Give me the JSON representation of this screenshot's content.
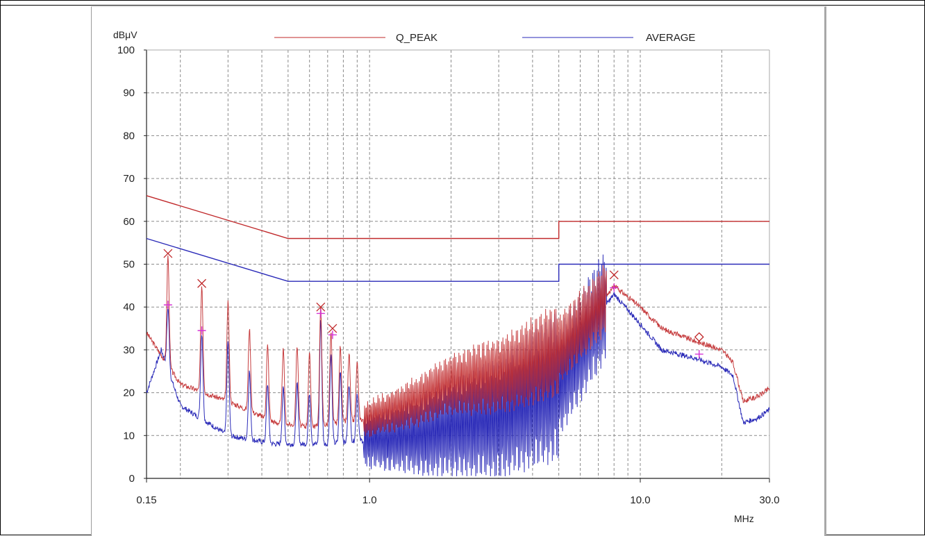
{
  "colors": {
    "q_peak": "#c0282a",
    "average": "#2a2ab8",
    "marker": "#d633d6",
    "grid": "#8a8a8a"
  },
  "chart_data": {
    "type": "line",
    "x_scale": "log",
    "xlim": [
      0.15,
      30.0
    ],
    "ylim": [
      0,
      100
    ],
    "y_unit_label": "dBμV",
    "x_unit_label": "MHz",
    "y_ticks": [
      "0",
      "10",
      "20",
      "30",
      "40",
      "50",
      "60",
      "70",
      "80",
      "90",
      "100"
    ],
    "x_tick_labels": [
      {
        "x": 0.15,
        "label": "0.15"
      },
      {
        "x": 1.0,
        "label": "1.0"
      },
      {
        "x": 10.0,
        "label": "10.0"
      },
      {
        "x": 30.0,
        "label": "30.0"
      }
    ],
    "grid": true,
    "legend": [
      {
        "name": "Q_PEAK",
        "color": "#c0282a"
      },
      {
        "name": "AVERAGE",
        "color": "#2a2ab8"
      }
    ],
    "limit_lines": [
      {
        "series": "Q_PEAK",
        "points": [
          [
            0.15,
            66
          ],
          [
            0.5,
            56
          ],
          [
            5.0,
            56
          ],
          [
            5.0,
            60
          ],
          [
            30.0,
            60
          ]
        ]
      },
      {
        "series": "AVERAGE",
        "points": [
          [
            0.15,
            56
          ],
          [
            0.5,
            46
          ],
          [
            5.0,
            46
          ],
          [
            5.0,
            50
          ],
          [
            30.0,
            50
          ]
        ]
      }
    ],
    "series": [
      {
        "name": "Q_PEAK",
        "baseline": [
          [
            0.15,
            34
          ],
          [
            0.2,
            22
          ],
          [
            0.3,
            18
          ],
          [
            0.45,
            13
          ],
          [
            0.6,
            12
          ],
          [
            1.0,
            14
          ],
          [
            1.5,
            18
          ],
          [
            2.0,
            22
          ],
          [
            3.0,
            24
          ],
          [
            5.0,
            30
          ],
          [
            7.0,
            40
          ],
          [
            8.0,
            45
          ],
          [
            10.0,
            40
          ],
          [
            12.0,
            35
          ],
          [
            16.0,
            32
          ],
          [
            20.0,
            30
          ],
          [
            22.0,
            27
          ],
          [
            24.0,
            18
          ],
          [
            27.0,
            19
          ],
          [
            30.0,
            21
          ]
        ],
        "harmonic_peaks": [
          [
            0.18,
            52
          ],
          [
            0.24,
            45
          ],
          [
            0.3,
            41
          ],
          [
            0.36,
            35
          ],
          [
            0.42,
            31
          ],
          [
            0.48,
            30
          ],
          [
            0.54,
            31
          ],
          [
            0.6,
            29
          ],
          [
            0.66,
            40
          ],
          [
            0.72,
            34
          ],
          [
            0.78,
            31
          ],
          [
            0.84,
            29
          ],
          [
            0.9,
            27
          ]
        ]
      },
      {
        "name": "AVERAGE",
        "baseline": [
          [
            0.15,
            20
          ],
          [
            0.17,
            30
          ],
          [
            0.2,
            17
          ],
          [
            0.3,
            10
          ],
          [
            0.45,
            8
          ],
          [
            0.7,
            8
          ],
          [
            1.0,
            9
          ],
          [
            1.5,
            10
          ],
          [
            2.0,
            12
          ],
          [
            3.0,
            14
          ],
          [
            5.0,
            22
          ],
          [
            7.0,
            38
          ],
          [
            8.0,
            43
          ],
          [
            10.0,
            36
          ],
          [
            12.0,
            30
          ],
          [
            16.0,
            28
          ],
          [
            20.0,
            26
          ],
          [
            22.0,
            24
          ],
          [
            24.0,
            13
          ],
          [
            27.0,
            14
          ],
          [
            30.0,
            16
          ]
        ],
        "harmonic_peaks": [
          [
            0.18,
            40
          ],
          [
            0.24,
            34
          ],
          [
            0.3,
            32
          ],
          [
            0.36,
            25
          ],
          [
            0.42,
            22
          ],
          [
            0.48,
            21
          ],
          [
            0.54,
            22
          ],
          [
            0.6,
            20
          ],
          [
            0.66,
            37
          ],
          [
            0.72,
            29
          ],
          [
            0.78,
            25
          ],
          [
            0.84,
            22
          ],
          [
            0.9,
            20
          ]
        ]
      }
    ],
    "peak_markers": [
      {
        "x": 0.18,
        "y": 52.5,
        "symbol": "x"
      },
      {
        "x": 0.24,
        "y": 45.5,
        "symbol": "x"
      },
      {
        "x": 0.66,
        "y": 40,
        "symbol": "x"
      },
      {
        "x": 0.73,
        "y": 35,
        "symbol": "x"
      },
      {
        "x": 8.0,
        "y": 47.5,
        "symbol": "x"
      },
      {
        "x": 16.5,
        "y": 33,
        "symbol": "diamond"
      }
    ],
    "average_markers": [
      {
        "x": 0.18,
        "y": 40.5
      },
      {
        "x": 0.24,
        "y": 34.5
      },
      {
        "x": 0.66,
        "y": 38.5
      },
      {
        "x": 0.73,
        "y": 33.5
      },
      {
        "x": 8.0,
        "y": 44.5
      },
      {
        "x": 16.5,
        "y": 29
      }
    ]
  }
}
